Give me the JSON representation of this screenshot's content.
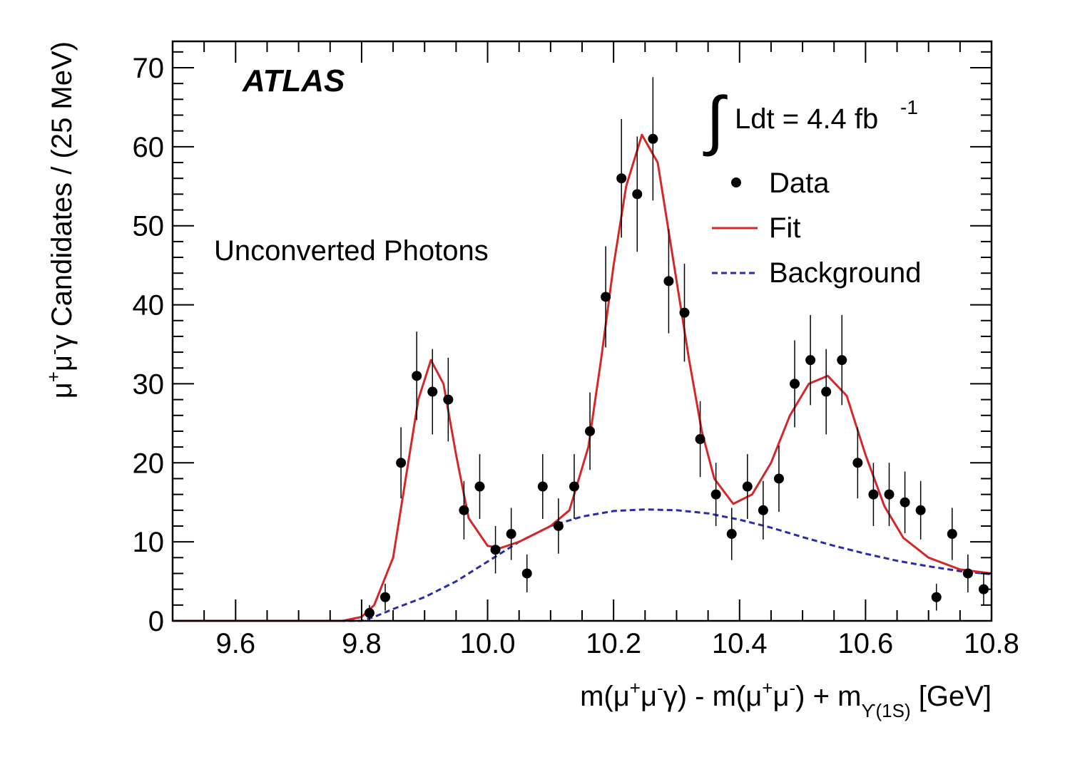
{
  "chart_data": {
    "type": "scatter",
    "experiment_label": "ATLAS",
    "annotation": "Unconverted Photons",
    "luminosity": {
      "integral_symbol": "∫",
      "text": "Ldt = 4.4 fb",
      "exponent": "-1"
    },
    "xlabel_parts": [
      "m(μ",
      "+",
      "μ",
      "-",
      "γ) - m(μ",
      "+",
      "μ",
      "-",
      ") + m",
      "ϒ(1S)",
      " [GeV]"
    ],
    "ylabel_parts": [
      "μ",
      "+",
      "μ",
      "-",
      "γ Candidates / (25 MeV)"
    ],
    "xlim": [
      9.5,
      10.8
    ],
    "ylim": [
      0,
      72
    ],
    "xticks": [
      "9.6",
      "9.8",
      "10.0",
      "10.2",
      "10.4",
      "10.6",
      "10.8"
    ],
    "yticks": [
      "0",
      "10",
      "20",
      "30",
      "40",
      "50",
      "60",
      "70"
    ],
    "grid": false,
    "legend_position": "top-right",
    "legend": [
      {
        "name": "Data",
        "style": "marker",
        "color": "#000000"
      },
      {
        "name": "Fit",
        "style": "solid",
        "color": "#d62728"
      },
      {
        "name": "Background",
        "style": "dashed",
        "color": "#2c2ca8"
      }
    ],
    "series": [
      {
        "name": "Data",
        "type": "points-with-errors",
        "x": [
          9.8125,
          9.8375,
          9.8625,
          9.8875,
          9.9125,
          9.9375,
          9.9625,
          9.9875,
          10.0125,
          10.0375,
          10.0625,
          10.0875,
          10.1125,
          10.1375,
          10.1625,
          10.1875,
          10.2125,
          10.2375,
          10.2625,
          10.2875,
          10.3125,
          10.3375,
          10.3625,
          10.3875,
          10.4125,
          10.4375,
          10.4625,
          10.4875,
          10.5125,
          10.5375,
          10.5625,
          10.5875,
          10.6125,
          10.6375,
          10.6625,
          10.6875,
          10.7125,
          10.7375,
          10.7625,
          10.7875
        ],
        "y": [
          1,
          3,
          20,
          31,
          29,
          28,
          14,
          17,
          9,
          11,
          6,
          17,
          12,
          17,
          24,
          41,
          56,
          54,
          61,
          43,
          39,
          23,
          16,
          11,
          17,
          14,
          18,
          30,
          33,
          29,
          33,
          20,
          16,
          16,
          15,
          14,
          3,
          11,
          6,
          4
        ],
        "yerr": [
          1.0,
          1.7,
          4.5,
          5.6,
          5.4,
          5.3,
          3.7,
          4.1,
          3.0,
          3.3,
          2.4,
          4.1,
          3.5,
          4.1,
          4.9,
          6.4,
          7.5,
          7.3,
          7.8,
          6.6,
          6.2,
          4.8,
          4.0,
          3.3,
          4.1,
          3.7,
          4.2,
          5.5,
          5.7,
          5.4,
          5.7,
          4.5,
          4.0,
          4.0,
          3.9,
          3.7,
          1.7,
          3.3,
          2.4,
          2.0
        ]
      },
      {
        "name": "Fit",
        "type": "line",
        "x": [
          9.5,
          9.77,
          9.8,
          9.82,
          9.85,
          9.87,
          9.89,
          9.91,
          9.93,
          9.95,
          9.97,
          10.0,
          10.02,
          10.05,
          10.1,
          10.13,
          10.16,
          10.18,
          10.2,
          10.22,
          10.245,
          10.27,
          10.3,
          10.32,
          10.34,
          10.36,
          10.39,
          10.42,
          10.45,
          10.48,
          10.51,
          10.54,
          10.57,
          10.6,
          10.63,
          10.66,
          10.7,
          10.75,
          10.8
        ],
        "y": [
          0,
          0,
          0.5,
          2,
          8,
          18,
          28,
          33,
          30,
          21,
          13,
          9.5,
          9.2,
          10,
          12,
          14,
          22,
          33,
          45,
          55,
          61.5,
          58,
          43,
          33,
          24,
          18,
          14.8,
          16,
          20,
          26,
          30,
          31,
          28.5,
          21,
          14.5,
          10.5,
          8,
          6.5,
          6
        ]
      },
      {
        "name": "Background",
        "type": "line",
        "x": [
          9.5,
          9.8,
          9.82,
          9.85,
          9.9,
          9.95,
          10.0,
          10.05,
          10.1,
          10.15,
          10.2,
          10.25,
          10.3,
          10.35,
          10.4,
          10.45,
          10.5,
          10.55,
          10.6,
          10.65,
          10.7,
          10.75,
          10.8
        ],
        "y": [
          0,
          0,
          0.5,
          1.5,
          3,
          5,
          7.5,
          10,
          12,
          13.2,
          13.9,
          14.1,
          14,
          13.6,
          12.8,
          11.8,
          10.6,
          9.5,
          8.5,
          7.6,
          6.9,
          6.3,
          5.9
        ]
      }
    ]
  }
}
